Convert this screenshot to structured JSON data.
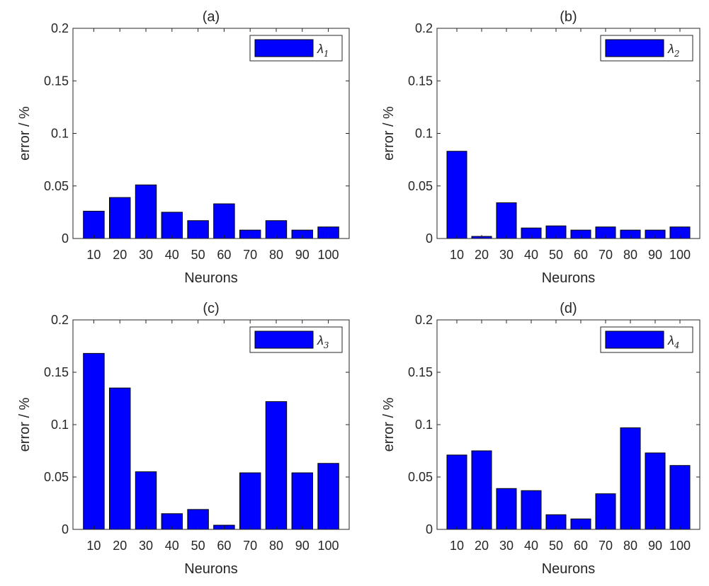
{
  "chart_data": [
    {
      "type": "bar",
      "title": "(a)",
      "xlabel": "Neurons",
      "ylabel": "error / %",
      "categories": [
        "10",
        "20",
        "30",
        "40",
        "50",
        "60",
        "70",
        "80",
        "90",
        "100"
      ],
      "series": [
        {
          "name": "λ1",
          "legend_symbol": "λ",
          "legend_sub": "1",
          "values": [
            0.026,
            0.039,
            0.051,
            0.025,
            0.017,
            0.033,
            0.008,
            0.017,
            0.008,
            0.011
          ]
        }
      ],
      "ylim": [
        0,
        0.2
      ],
      "yticks": [
        "0",
        "0.05",
        "0.1",
        "0.15",
        "0.2"
      ],
      "legend_position": "top-right",
      "bar_color": "#0000ff",
      "grid": false
    },
    {
      "type": "bar",
      "title": "(b)",
      "xlabel": "Neurons",
      "ylabel": "error / %",
      "categories": [
        "10",
        "20",
        "30",
        "40",
        "50",
        "60",
        "70",
        "80",
        "90",
        "100"
      ],
      "series": [
        {
          "name": "λ2",
          "legend_symbol": "λ",
          "legend_sub": "2",
          "values": [
            0.083,
            0.002,
            0.034,
            0.01,
            0.012,
            0.008,
            0.011,
            0.008,
            0.008,
            0.011
          ]
        }
      ],
      "ylim": [
        0,
        0.2
      ],
      "yticks": [
        "0",
        "0.05",
        "0.1",
        "0.15",
        "0.2"
      ],
      "legend_position": "top-right",
      "bar_color": "#0000ff",
      "grid": false
    },
    {
      "type": "bar",
      "title": "(c)",
      "xlabel": "Neurons",
      "ylabel": "error / %",
      "categories": [
        "10",
        "20",
        "30",
        "40",
        "50",
        "60",
        "70",
        "80",
        "90",
        "100"
      ],
      "series": [
        {
          "name": "λ3",
          "legend_symbol": "λ",
          "legend_sub": "3",
          "values": [
            0.168,
            0.135,
            0.055,
            0.015,
            0.019,
            0.004,
            0.054,
            0.122,
            0.054,
            0.063
          ]
        }
      ],
      "ylim": [
        0,
        0.2
      ],
      "yticks": [
        "0",
        "0.05",
        "0.1",
        "0.15",
        "0.2"
      ],
      "legend_position": "top-right",
      "bar_color": "#0000ff",
      "grid": false
    },
    {
      "type": "bar",
      "title": "(d)",
      "xlabel": "Neurons",
      "ylabel": "error / %",
      "categories": [
        "10",
        "20",
        "30",
        "40",
        "50",
        "60",
        "70",
        "80",
        "90",
        "100"
      ],
      "series": [
        {
          "name": "λ4",
          "legend_symbol": "λ",
          "legend_sub": "4",
          "values": [
            0.071,
            0.075,
            0.039,
            0.037,
            0.014,
            0.01,
            0.034,
            0.097,
            0.073,
            0.061
          ]
        }
      ],
      "ylim": [
        0,
        0.2
      ],
      "yticks": [
        "0",
        "0.05",
        "0.1",
        "0.15",
        "0.2"
      ],
      "legend_position": "top-right",
      "bar_color": "#0000ff",
      "grid": false
    }
  ]
}
